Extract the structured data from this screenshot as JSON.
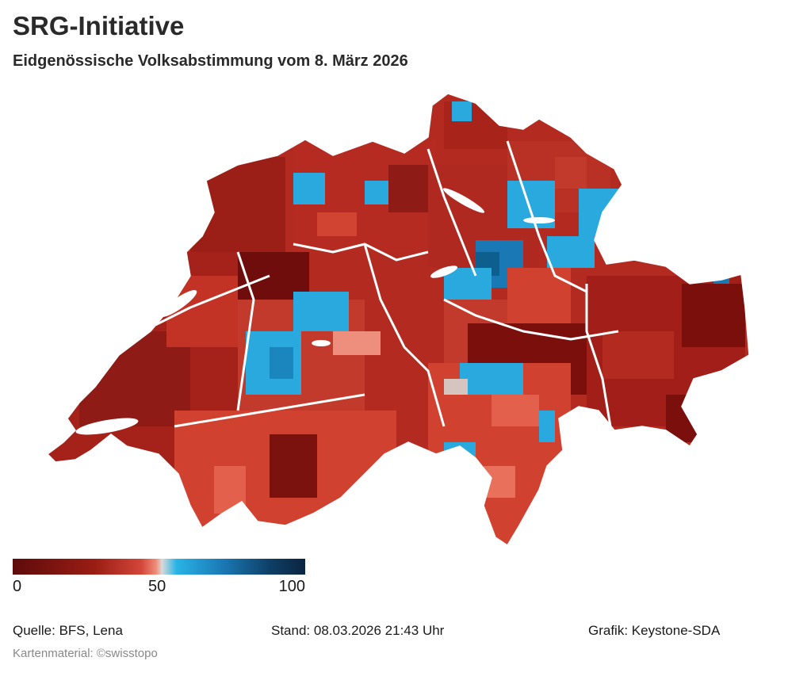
{
  "header": {
    "title": "SRG-Initiative",
    "subtitle": "Eidgenössische Volksabstimmung vom 8. März 2026"
  },
  "legend": {
    "min_label": "0",
    "mid_label": "50",
    "max_label": "100",
    "scale_min": 0,
    "scale_mid": 50,
    "scale_max": 100,
    "colors": [
      "#5e0b0b",
      "#9a1d14",
      "#d4463a",
      "#ef8c78",
      "#d9d9d9",
      "#2ab3e6",
      "#1a78b4",
      "#0e3f66",
      "#0b2440"
    ]
  },
  "map": {
    "subject": "Switzerland municipalities choropleth",
    "colors": {
      "darkred": "#7a0f0c",
      "red": "#b32a20",
      "midred": "#cc3b2c",
      "lightred": "#e4604b",
      "salmon": "#ee8e7d",
      "neutral": "#d5c4c0",
      "blue": "#2aa9de",
      "darkblue": "#0f5f8e",
      "border": "#ffffff"
    }
  },
  "footer": {
    "source": "Quelle: BFS, Lena",
    "stand": "Stand: 08.03.2026 21:43 Uhr",
    "grafik": "Grafik: Keystone-SDA",
    "map_credit": "Kartenmaterial: ©swisstopo"
  }
}
